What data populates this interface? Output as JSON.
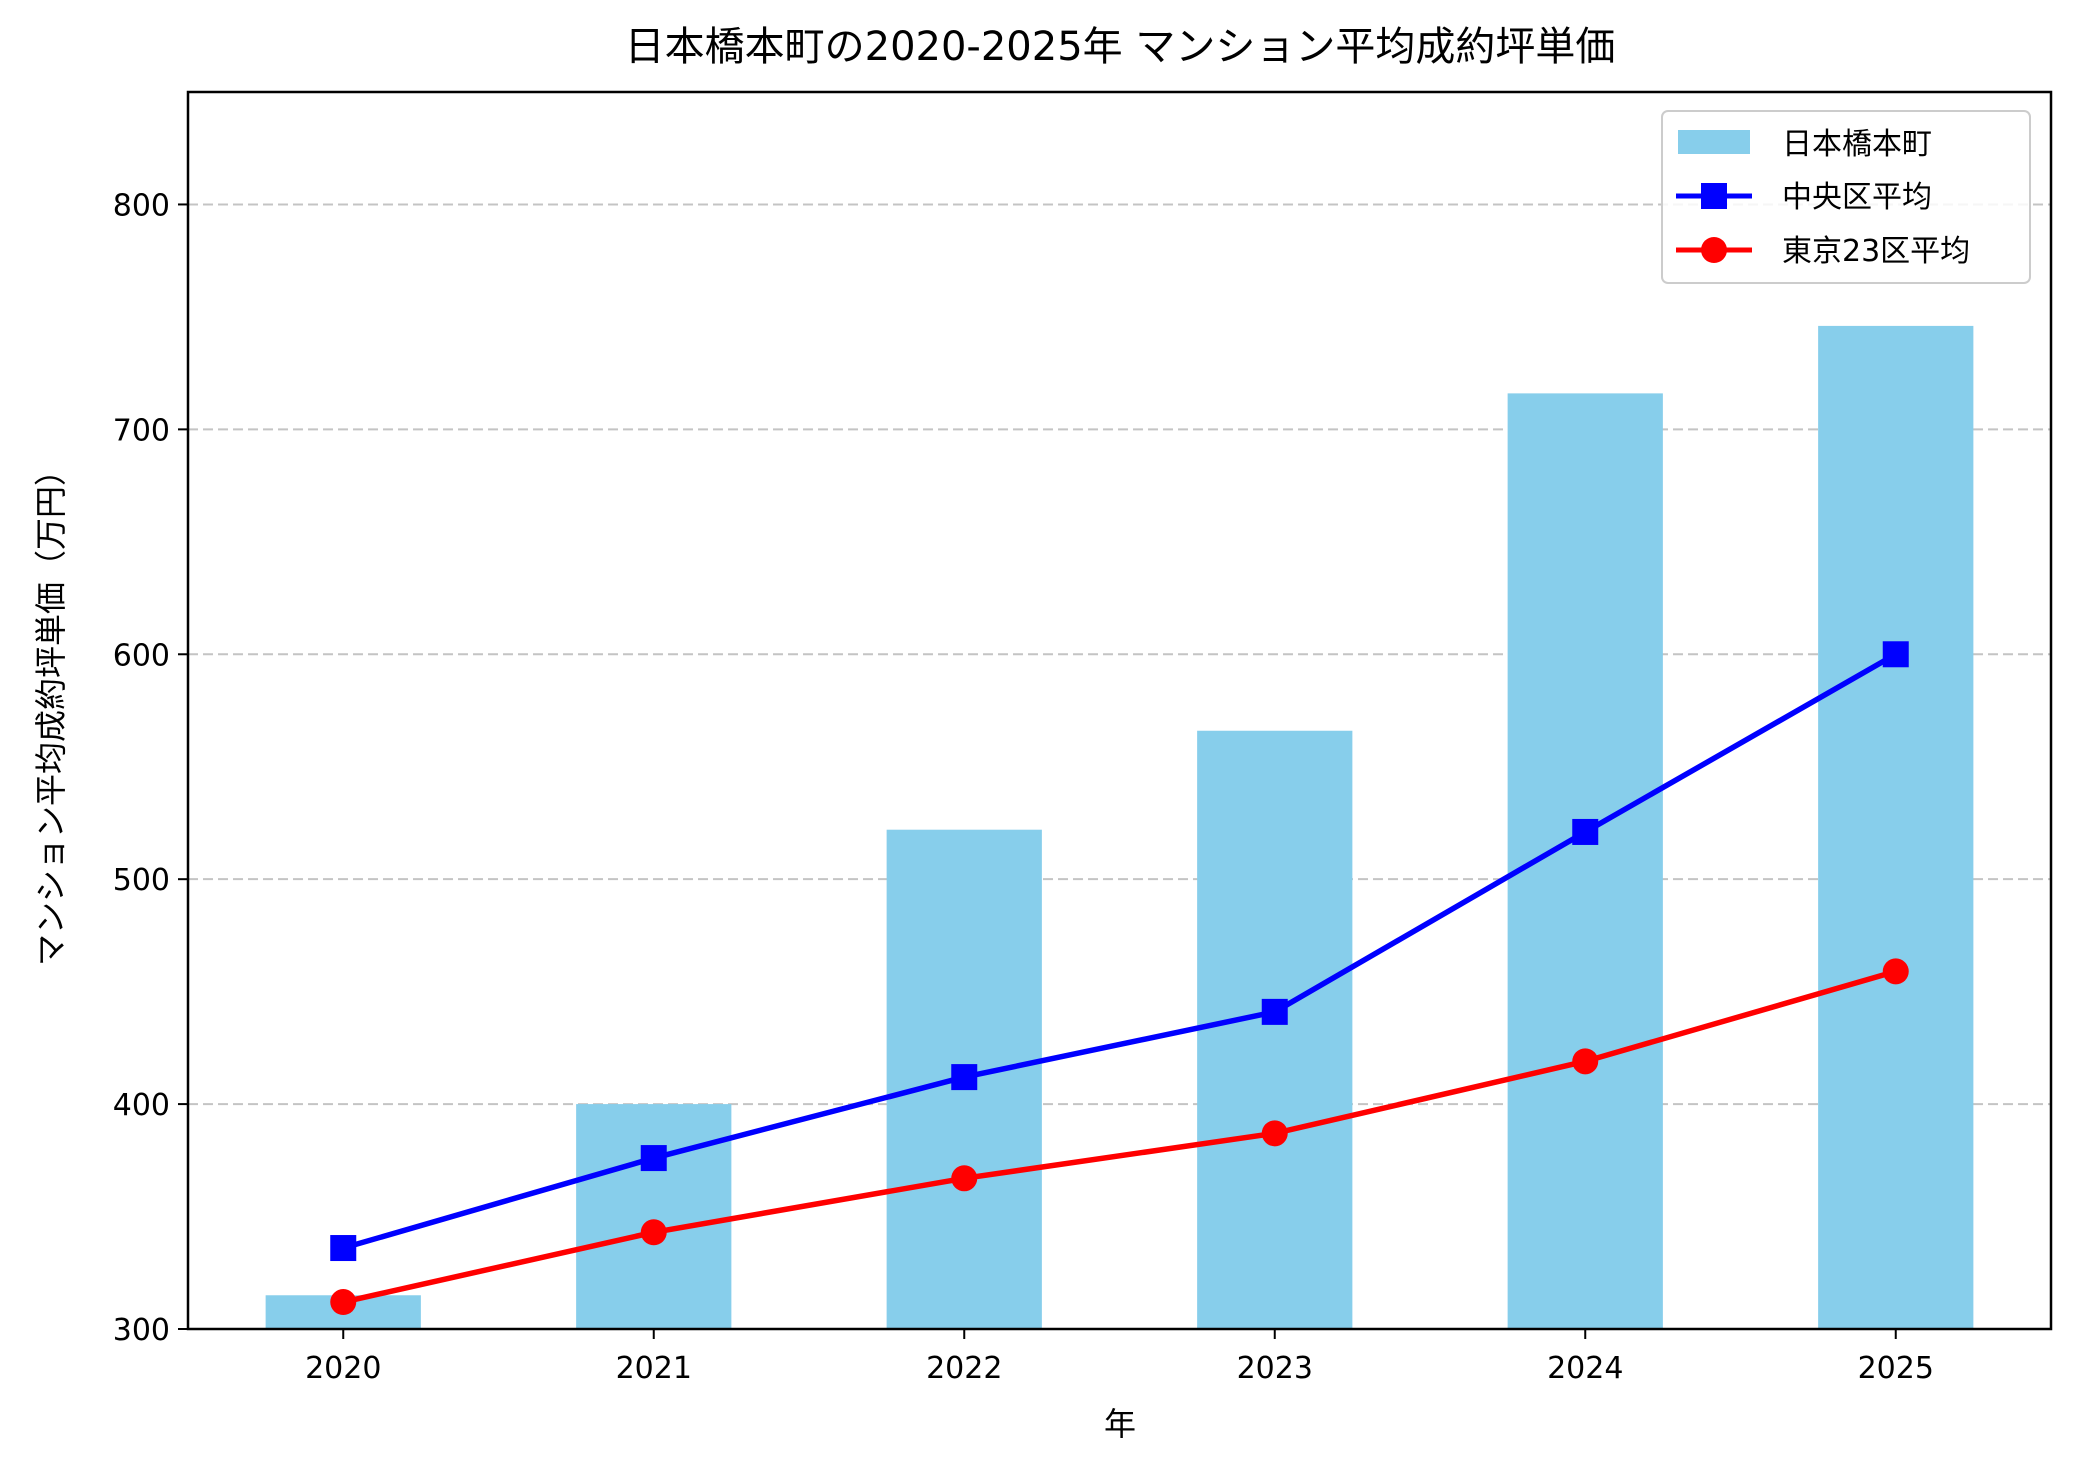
{
  "chart_data": {
    "type": "bar+line",
    "title": "日本橋本町の2020-2025年 マンション平均成約坪単価",
    "xlabel": "年",
    "ylabel": "マンション平均成約坪単価（万円）",
    "categories": [
      "2020",
      "2021",
      "2022",
      "2023",
      "2024",
      "2025"
    ],
    "ylim": [
      300,
      850
    ],
    "yticks": [
      300,
      400,
      500,
      600,
      700,
      800
    ],
    "grid": "y, dashed",
    "legend_position": "top-right",
    "series": [
      {
        "name": "日本橋本町",
        "type": "bar",
        "color": "#87CEEB",
        "values": [
          315,
          400,
          522,
          566,
          716,
          746
        ]
      },
      {
        "name": "中央区平均",
        "type": "line",
        "marker": "square",
        "color": "#0000FF",
        "values": [
          336,
          376,
          412,
          441,
          521,
          600
        ]
      },
      {
        "name": "東京23区平均",
        "type": "line",
        "marker": "circle",
        "color": "#FF0000",
        "values": [
          312,
          343,
          367,
          387,
          419,
          459
        ]
      }
    ]
  }
}
